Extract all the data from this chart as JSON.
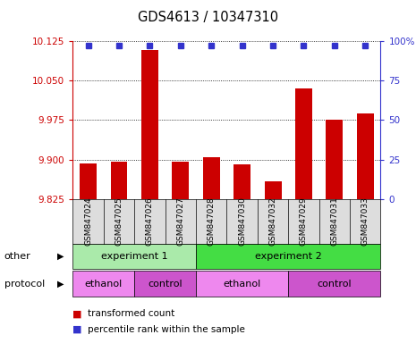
{
  "title": "GDS4613 / 10347310",
  "samples": [
    "GSM847024",
    "GSM847025",
    "GSM847026",
    "GSM847027",
    "GSM847028",
    "GSM847030",
    "GSM847032",
    "GSM847029",
    "GSM847031",
    "GSM847033"
  ],
  "bar_values": [
    9.893,
    9.896,
    10.108,
    9.896,
    9.905,
    9.891,
    9.858,
    10.035,
    9.975,
    9.988
  ],
  "ylim": [
    9.825,
    10.125
  ],
  "yticks": [
    9.825,
    9.9,
    9.975,
    10.05,
    10.125
  ],
  "right_yticks": [
    0,
    25,
    50,
    75,
    100
  ],
  "right_ylim": [
    0,
    100
  ],
  "bar_color": "#cc0000",
  "dot_color": "#3333cc",
  "bar_bottom": 9.825,
  "dot_percentile": 97,
  "groups_other": [
    {
      "label": "experiment 1",
      "start": 0,
      "end": 4,
      "color": "#aaeaaa"
    },
    {
      "label": "experiment 2",
      "start": 4,
      "end": 10,
      "color": "#44dd44"
    }
  ],
  "groups_protocol": [
    {
      "label": "ethanol",
      "start": 0,
      "end": 2,
      "color": "#ee88ee"
    },
    {
      "label": "control",
      "start": 2,
      "end": 4,
      "color": "#cc55cc"
    },
    {
      "label": "ethanol",
      "start": 4,
      "end": 7,
      "color": "#ee88ee"
    },
    {
      "label": "control",
      "start": 7,
      "end": 10,
      "color": "#cc55cc"
    }
  ],
  "legend_items": [
    {
      "label": "transformed count",
      "color": "#cc0000"
    },
    {
      "label": "percentile rank within the sample",
      "color": "#3333cc"
    }
  ],
  "left_label_color": "#cc0000",
  "right_label_color": "#3333cc",
  "sample_bg_color": "#dddddd",
  "fig_bg_color": "#ffffff"
}
